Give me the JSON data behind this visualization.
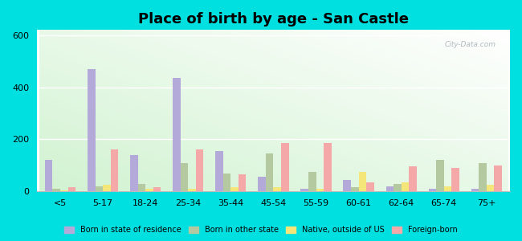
{
  "title": "Place of birth by age - San Castle",
  "categories": [
    "<5",
    "5-17",
    "18-24",
    "25-34",
    "35-44",
    "45-54",
    "55-59",
    "60-61",
    "62-64",
    "65-74",
    "75+"
  ],
  "series": {
    "Born in state of residence": [
      120,
      470,
      140,
      435,
      155,
      55,
      10,
      45,
      20,
      10,
      10
    ],
    "Born in other state": [
      10,
      20,
      30,
      110,
      70,
      145,
      75,
      15,
      30,
      120,
      110
    ],
    "Native, outside of US": [
      5,
      25,
      10,
      10,
      15,
      15,
      10,
      75,
      35,
      20,
      25
    ],
    "Foreign-born": [
      15,
      160,
      15,
      160,
      65,
      185,
      185,
      35,
      95,
      90,
      100
    ]
  },
  "colors": {
    "Born in state of residence": "#b3aad9",
    "Born in other state": "#b5c9a0",
    "Native, outside of US": "#f5e67a",
    "Foreign-born": "#f5a8a8"
  },
  "ylim": [
    0,
    620
  ],
  "yticks": [
    0,
    200,
    400,
    600
  ],
  "figure_bg": "#00e0e0",
  "bar_width": 0.18,
  "title_fontsize": 13,
  "watermark": "City-Data.com"
}
